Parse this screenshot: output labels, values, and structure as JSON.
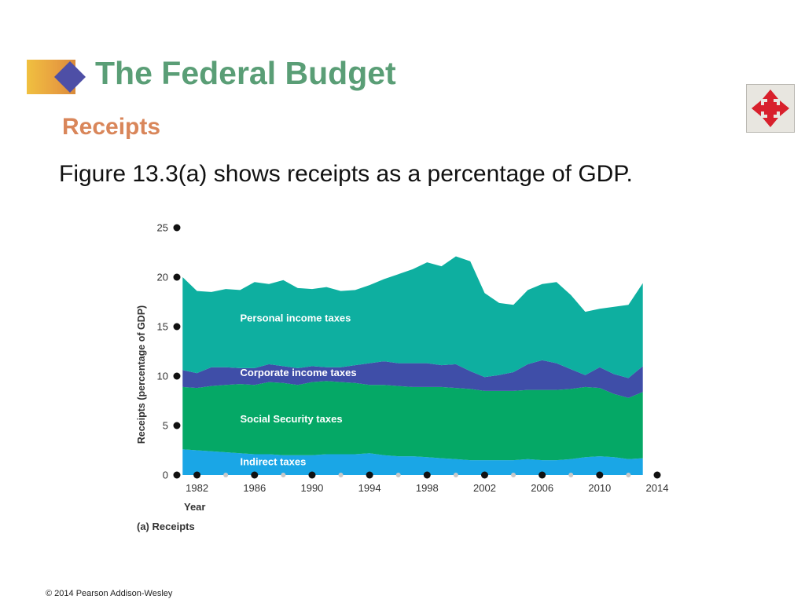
{
  "slide": {
    "title": "The Federal Budget",
    "subtitle": "Receipts",
    "body": "Figure 13.3(a) shows receipts as a percentage of GDP.",
    "footer": "© 2014 Pearson Addison-Wesley",
    "nav_icon": "four-way-arrow-icon"
  },
  "colors": {
    "title": "#5a9e76",
    "subtitle": "#d9865a",
    "personal": "#0eafa0",
    "corporate": "#3f4ea8",
    "social": "#05a866",
    "indirect": "#1aa6e6",
    "nav_arrows": "#d8202c"
  },
  "chart_data": {
    "type": "area",
    "stacked": true,
    "caption": "(a) Receipts",
    "xlabel": "Year",
    "ylabel": "Receipts (percentage of GDP)",
    "xlim": [
      1980.6,
      2014
    ],
    "ylim": [
      0,
      25
    ],
    "yticks": [
      0,
      5,
      10,
      15,
      20,
      25
    ],
    "xticks": [
      1982,
      1986,
      1990,
      1994,
      1998,
      2002,
      2006,
      2010,
      2014
    ],
    "x": [
      1981,
      1982,
      1983,
      1984,
      1985,
      1986,
      1987,
      1988,
      1989,
      1990,
      1991,
      1992,
      1993,
      1994,
      1995,
      1996,
      1997,
      1998,
      1999,
      2000,
      2001,
      2002,
      2003,
      2004,
      2005,
      2006,
      2007,
      2008,
      2009,
      2010,
      2011,
      2012,
      2013
    ],
    "series": [
      {
        "name": "Indirect taxes",
        "key": "indirect",
        "values": [
          2.6,
          2.5,
          2.4,
          2.3,
          2.2,
          2.1,
          2.1,
          2.0,
          2.0,
          2.0,
          2.1,
          2.1,
          2.1,
          2.2,
          2.0,
          1.9,
          1.9,
          1.8,
          1.7,
          1.6,
          1.5,
          1.5,
          1.5,
          1.5,
          1.6,
          1.5,
          1.5,
          1.6,
          1.8,
          1.9,
          1.8,
          1.6,
          1.7
        ]
      },
      {
        "name": "Social Security taxes",
        "key": "social",
        "values": [
          6.3,
          6.3,
          6.6,
          6.8,
          7.0,
          7.0,
          7.3,
          7.3,
          7.1,
          7.4,
          7.4,
          7.3,
          7.2,
          6.9,
          7.1,
          7.1,
          7.0,
          7.1,
          7.2,
          7.2,
          7.2,
          7.0,
          7.0,
          7.0,
          7.0,
          7.1,
          7.1,
          7.1,
          7.1,
          6.9,
          6.4,
          6.2,
          6.7
        ]
      },
      {
        "name": "Corporate income taxes",
        "key": "corporate",
        "values": [
          1.7,
          1.5,
          1.9,
          1.8,
          1.6,
          1.7,
          1.8,
          1.7,
          1.7,
          1.6,
          1.4,
          1.5,
          1.8,
          2.2,
          2.4,
          2.3,
          2.4,
          2.4,
          2.2,
          2.4,
          1.8,
          1.4,
          1.6,
          1.9,
          2.6,
          3.0,
          2.7,
          2.0,
          1.2,
          2.1,
          2.0,
          2.0,
          2.6
        ]
      },
      {
        "name": "Personal income taxes",
        "key": "personal",
        "values": [
          9.4,
          8.3,
          7.6,
          7.9,
          7.9,
          8.7,
          8.1,
          8.7,
          8.1,
          7.8,
          8.1,
          7.7,
          7.6,
          7.9,
          8.3,
          9.0,
          9.5,
          10.2,
          10.0,
          10.9,
          11.1,
          8.5,
          7.3,
          6.8,
          7.5,
          7.7,
          8.2,
          7.5,
          6.4,
          5.9,
          6.8,
          7.4,
          8.4
        ]
      }
    ],
    "grid": false,
    "legend": "inline labels"
  }
}
